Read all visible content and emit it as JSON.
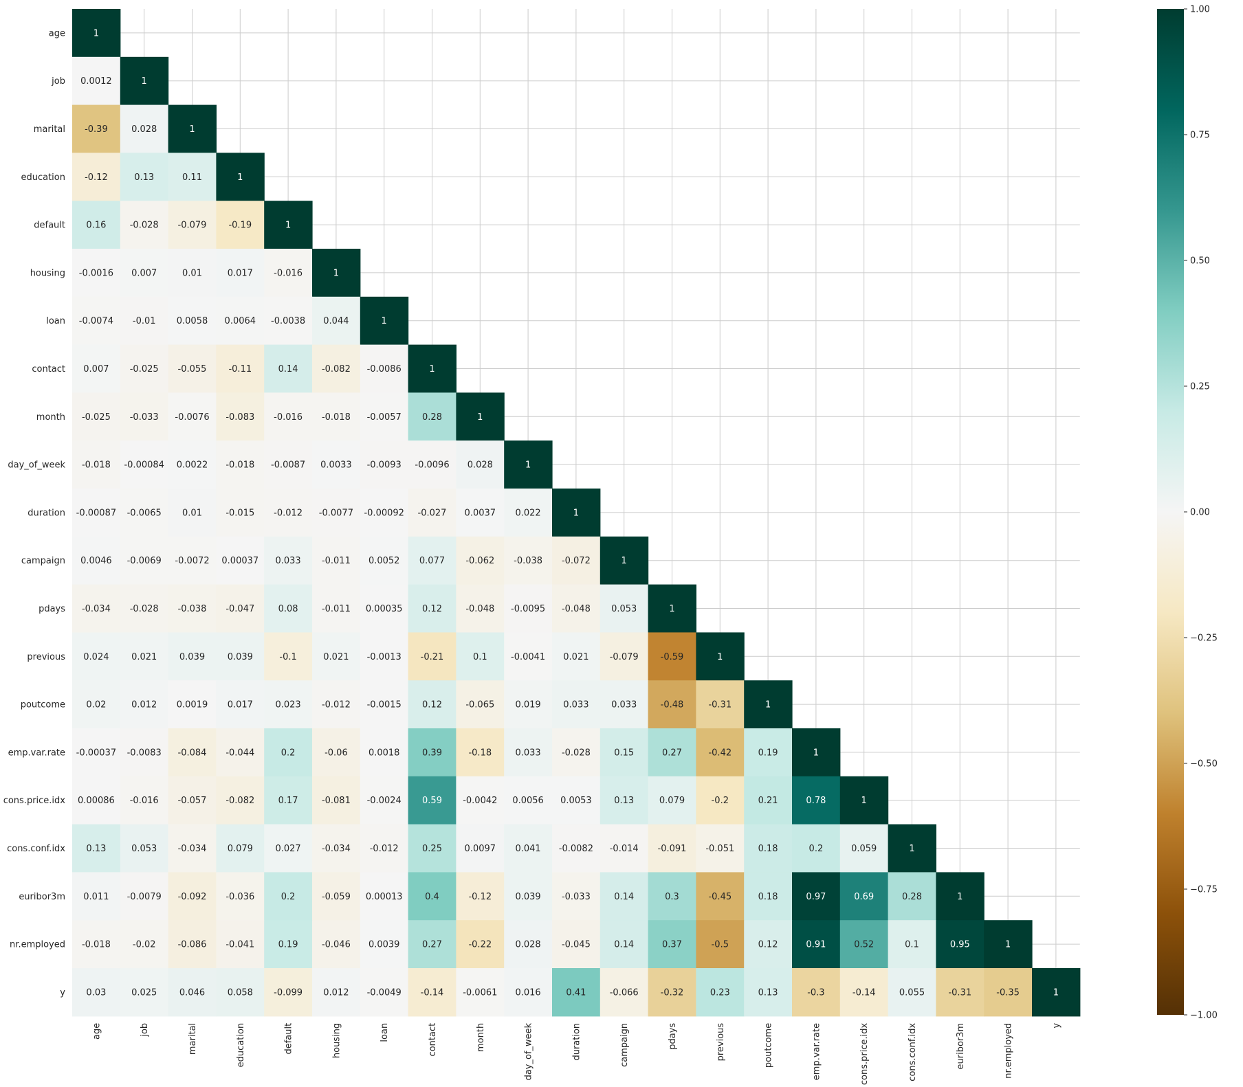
{
  "chart_data": {
    "type": "heatmap",
    "title": "",
    "variables": [
      "age",
      "job",
      "marital",
      "education",
      "default",
      "housing",
      "loan",
      "contact",
      "month",
      "day_of_week",
      "duration",
      "campaign",
      "pdays",
      "previous",
      "poutcome",
      "emp.var.rate",
      "cons.price.idx",
      "cons.conf.idx",
      "euribor3m",
      "nr.employed",
      "y"
    ],
    "lower_triangle_values": [
      [
        "1"
      ],
      [
        "0.0012",
        "1"
      ],
      [
        "-0.39",
        "0.028",
        "1"
      ],
      [
        "-0.12",
        "0.13",
        "0.11",
        "1"
      ],
      [
        "0.16",
        "-0.028",
        "-0.079",
        "-0.19",
        "1"
      ],
      [
        "-0.0016",
        "0.007",
        "0.01",
        "0.017",
        "-0.016",
        "1"
      ],
      [
        "-0.0074",
        "-0.01",
        "0.0058",
        "0.0064",
        "-0.0038",
        "0.044",
        "1"
      ],
      [
        "0.007",
        "-0.025",
        "-0.055",
        "-0.11",
        "0.14",
        "-0.082",
        "-0.0086",
        "1"
      ],
      [
        "-0.025",
        "-0.033",
        "-0.0076",
        "-0.083",
        "-0.016",
        "-0.018",
        "-0.0057",
        "0.28",
        "1"
      ],
      [
        "-0.018",
        "-0.00084",
        "0.0022",
        "-0.018",
        "-0.0087",
        "0.0033",
        "-0.0093",
        "-0.0096",
        "0.028",
        "1"
      ],
      [
        "-0.00087",
        "-0.0065",
        "0.01",
        "-0.015",
        "-0.012",
        "-0.0077",
        "-0.00092",
        "-0.027",
        "0.0037",
        "0.022",
        "1"
      ],
      [
        "0.0046",
        "-0.0069",
        "-0.0072",
        "0.00037",
        "0.033",
        "-0.011",
        "0.0052",
        "0.077",
        "-0.062",
        "-0.038",
        "-0.072",
        "1"
      ],
      [
        "-0.034",
        "-0.028",
        "-0.038",
        "-0.047",
        "0.08",
        "-0.011",
        "0.00035",
        "0.12",
        "-0.048",
        "-0.0095",
        "-0.048",
        "0.053",
        "1"
      ],
      [
        "0.024",
        "0.021",
        "0.039",
        "0.039",
        "-0.1",
        "0.021",
        "-0.0013",
        "-0.21",
        "0.1",
        "-0.0041",
        "0.021",
        "-0.079",
        "-0.59",
        "1"
      ],
      [
        "0.02",
        "0.012",
        "0.0019",
        "0.017",
        "0.023",
        "-0.012",
        "-0.0015",
        "0.12",
        "-0.065",
        "0.019",
        "0.033",
        "0.033",
        "-0.48",
        "-0.31",
        "1"
      ],
      [
        "-0.00037",
        "-0.0083",
        "-0.084",
        "-0.044",
        "0.2",
        "-0.06",
        "0.0018",
        "0.39",
        "-0.18",
        "0.033",
        "-0.028",
        "0.15",
        "0.27",
        "-0.42",
        "0.19",
        "1"
      ],
      [
        "0.00086",
        "-0.016",
        "-0.057",
        "-0.082",
        "0.17",
        "-0.081",
        "-0.0024",
        "0.59",
        "-0.0042",
        "0.0056",
        "0.0053",
        "0.13",
        "0.079",
        "-0.2",
        "0.21",
        "0.78",
        "1"
      ],
      [
        "0.13",
        "0.053",
        "-0.034",
        "0.079",
        "0.027",
        "-0.034",
        "-0.012",
        "0.25",
        "0.0097",
        "0.041",
        "-0.0082",
        "-0.014",
        "-0.091",
        "-0.051",
        "0.18",
        "0.2",
        "0.059",
        "1"
      ],
      [
        "0.011",
        "-0.0079",
        "-0.092",
        "-0.036",
        "0.2",
        "-0.059",
        "0.00013",
        "0.4",
        "-0.12",
        "0.039",
        "-0.033",
        "0.14",
        "0.3",
        "-0.45",
        "0.18",
        "0.97",
        "0.69",
        "0.28",
        "1"
      ],
      [
        "-0.018",
        "-0.02",
        "-0.086",
        "-0.041",
        "0.19",
        "-0.046",
        "0.0039",
        "0.27",
        "-0.22",
        "0.028",
        "-0.045",
        "0.14",
        "0.37",
        "-0.5",
        "0.12",
        "0.91",
        "0.52",
        "0.1",
        "0.95",
        "1"
      ],
      [
        "0.03",
        "0.025",
        "0.046",
        "0.058",
        "-0.099",
        "0.012",
        "-0.0049",
        "-0.14",
        "-0.0061",
        "0.016",
        "0.41",
        "-0.066",
        "-0.32",
        "0.23",
        "0.13",
        "-0.3",
        "-0.14",
        "0.055",
        "-0.31",
        "-0.35",
        "1"
      ]
    ],
    "colorbar": {
      "vmin": -1.0,
      "vmax": 1.0,
      "ticks": [
        "1.00",
        "0.75",
        "0.50",
        "0.25",
        "0.00",
        "−0.25",
        "−0.50",
        "−0.75",
        "−1.00"
      ],
      "colormap": "BrBG"
    },
    "grid": true
  }
}
